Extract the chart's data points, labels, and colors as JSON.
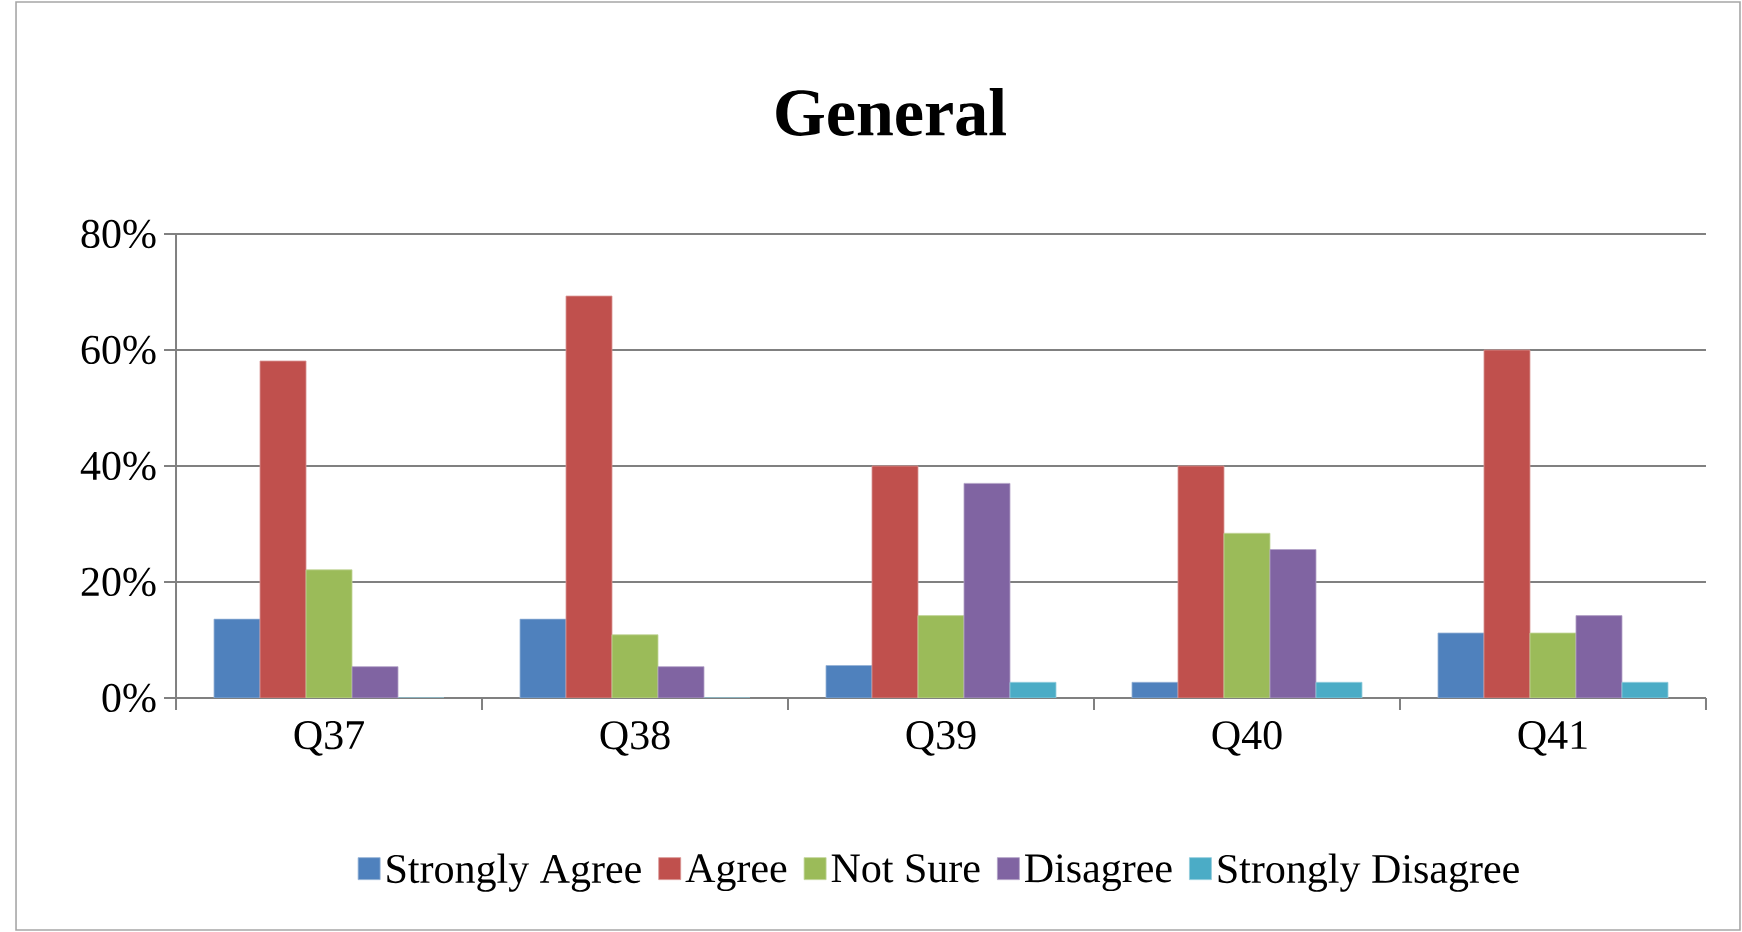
{
  "chart_data": {
    "type": "bar",
    "title": "General",
    "categories": [
      "Q37",
      "Q38",
      "Q39",
      "Q40",
      "Q41"
    ],
    "series": [
      {
        "name": "Strongly Agree",
        "color": "#4f81bd",
        "values": [
          13.6,
          13.6,
          5.6,
          2.7,
          11.2
        ]
      },
      {
        "name": "Agree",
        "color": "#c0504d",
        "values": [
          58.1,
          69.3,
          40,
          40,
          60
        ]
      },
      {
        "name": "Not Sure",
        "color": "#9bbb59",
        "values": [
          22.1,
          10.9,
          14.2,
          28.4,
          11.2
        ]
      },
      {
        "name": "Disagree",
        "color": "#8064a2",
        "values": [
          5.4,
          5.4,
          37,
          25.6,
          14.2
        ]
      },
      {
        "name": "Strongly Disagree",
        "color": "#4bacc6",
        "values": [
          0,
          0,
          2.7,
          2.7,
          2.7
        ]
      }
    ],
    "ylim": [
      0,
      80
    ],
    "yticks": [
      {
        "value": 0,
        "label": "0%"
      },
      {
        "value": 20,
        "label": "20%"
      },
      {
        "value": 40,
        "label": "40%"
      },
      {
        "value": 60,
        "label": "60%"
      },
      {
        "value": 80,
        "label": "80%"
      }
    ],
    "grid": "y",
    "legend": "bottom"
  }
}
